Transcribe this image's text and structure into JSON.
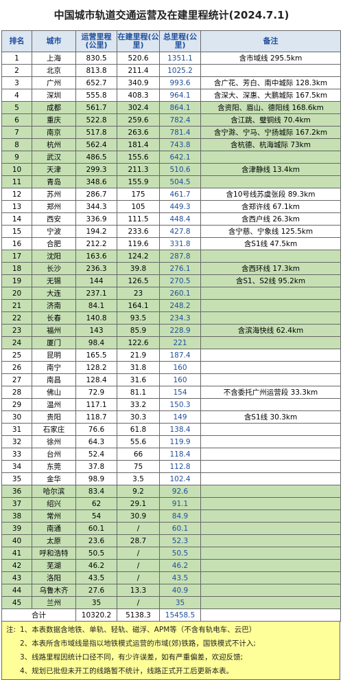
{
  "title": "中国城市轨道交通运营及在建里程统计(2024.7.1)",
  "table": {
    "header": [
      "排名",
      "城市",
      "运营里程(公里)",
      "在建里程(公里)",
      "总里程(公里)",
      "备注"
    ],
    "rows": [
      [
        1,
        "上海",
        830.5,
        520.6,
        1351.1,
        "含市域线 295.5km"
      ],
      [
        2,
        "北京",
        813.8,
        211.4,
        1025.2
      ],
      [
        3,
        "广州",
        652.7,
        340.9,
        993.6,
        "含广花、芳白、南中城际 128.3km"
      ],
      [
        4,
        "深圳",
        555.8,
        408.3,
        964.1,
        "含深大、深惠、大鹏城际 167.5km"
      ],
      [
        5,
        "成都",
        561.7,
        302.4,
        864.1,
        "含资阳、眉山、德阳线 168.6km"
      ],
      [
        6,
        "重庆",
        522.8,
        259.6,
        782.4,
        "含江跳、璧铜线 70.4km"
      ],
      [
        7,
        "南京",
        517.8,
        263.6,
        781.4,
        "含宁滁、宁马、宁扬城际 167.2km"
      ],
      [
        8,
        "杭州",
        562.4,
        181.4,
        743.8,
        "含杭德、杭海城际 73km"
      ],
      [
        9,
        "武汉",
        486.5,
        155.6,
        642.1
      ],
      [
        10,
        "天津",
        299.3,
        211.3,
        510.6,
        "含津静线 13.4km"
      ],
      [
        11,
        "青岛",
        348.6,
        155.9,
        504.5
      ],
      [
        12,
        "苏州",
        286.7,
        175,
        461.7,
        "含10号线苏虞张段 89.3km"
      ],
      [
        13,
        "郑州",
        344.3,
        105,
        449.3,
        "含郑许线 67.1km"
      ],
      [
        14,
        "西安",
        336.9,
        111.5,
        448.4,
        "含西户线 26.3km"
      ],
      [
        15,
        "宁波",
        194.2,
        233.6,
        427.8,
        "含宁慈、宁象线 125.5km"
      ],
      [
        16,
        "合肥",
        212.2,
        119.6,
        331.8,
        "含S1线 47.5km"
      ],
      [
        17,
        "沈阳",
        163.6,
        124.2,
        287.8
      ],
      [
        18,
        "长沙",
        236.3,
        39.8,
        276.1,
        "含西环线 17.3km"
      ],
      [
        19,
        "无锡",
        144,
        126.5,
        270.5,
        "含S1、S2线 95.2km"
      ],
      [
        20,
        "大连",
        237.1,
        23,
        260.1
      ],
      [
        21,
        "济南",
        84.1,
        164.1,
        248.2
      ],
      [
        22,
        "长春",
        140.8,
        93.5,
        234.3
      ],
      [
        23,
        "福州",
        143,
        85.9,
        228.9,
        "含滨海快线 62.4km"
      ],
      [
        24,
        "厦门",
        98.4,
        122.6,
        221
      ],
      [
        25,
        "昆明",
        165.5,
        21.9,
        187.4
      ],
      [
        26,
        "南宁",
        128.2,
        31.8,
        160
      ],
      [
        27,
        "南昌",
        128.4,
        31.6,
        160
      ],
      [
        28,
        "佛山",
        72.9,
        81.1,
        154,
        "不含委托广州运营段 33.3km"
      ],
      [
        29,
        "温州",
        117.1,
        33.2,
        150.3
      ],
      [
        30,
        "贵阳",
        118.7,
        30.3,
        149,
        "含S1线 30.3km"
      ],
      [
        31,
        "石家庄",
        76.6,
        61.8,
        138.4
      ],
      [
        32,
        "徐州",
        64.3,
        55.6,
        119.9
      ],
      [
        33,
        "台州",
        52.4,
        66,
        118.4
      ],
      [
        34,
        "东莞",
        37.8,
        75,
        112.8
      ],
      [
        35,
        "金华",
        98.9,
        3.5,
        102.4
      ],
      [
        36,
        "哈尔滨",
        83.4,
        9.2,
        92.6
      ],
      [
        37,
        "绍兴",
        62,
        29.1,
        91.1
      ],
      [
        38,
        "常州",
        54,
        30.9,
        84.9
      ],
      [
        39,
        "南通",
        60.1,
        "/",
        60.1
      ],
      [
        40,
        "太原",
        23.6,
        28.7,
        52.3
      ],
      [
        41,
        "呼和浩特",
        50.5,
        "/",
        50.5
      ],
      [
        42,
        "芜湖",
        46.2,
        "/",
        46.2
      ],
      [
        43,
        "洛阳",
        43.5,
        "/",
        43.5
      ],
      [
        44,
        "乌鲁木齐",
        27.6,
        13.3,
        40.9
      ],
      [
        45,
        "兰州",
        35,
        "/",
        35
      ]
    ],
    "total": [
      "合计",
      10320.2,
      5138.3,
      15458.5
    ]
  },
  "notes": {
    "label": "注:",
    "items": [
      "1、本表数据含地铁、单轨、轻轨、磁浮、APM等（不含有轨电车、云巴）",
      "2、本表所含市域线是指以地铁模式运营的市域(郊)铁路，国铁模式不计入;",
      "3、线路里程因统计口径不同，有少许误差，如有严重偏差，欢迎反馈;",
      "4、规划已批但未开工的线路暂不统计，线路正式开工后更新本表。"
    ]
  }
}
